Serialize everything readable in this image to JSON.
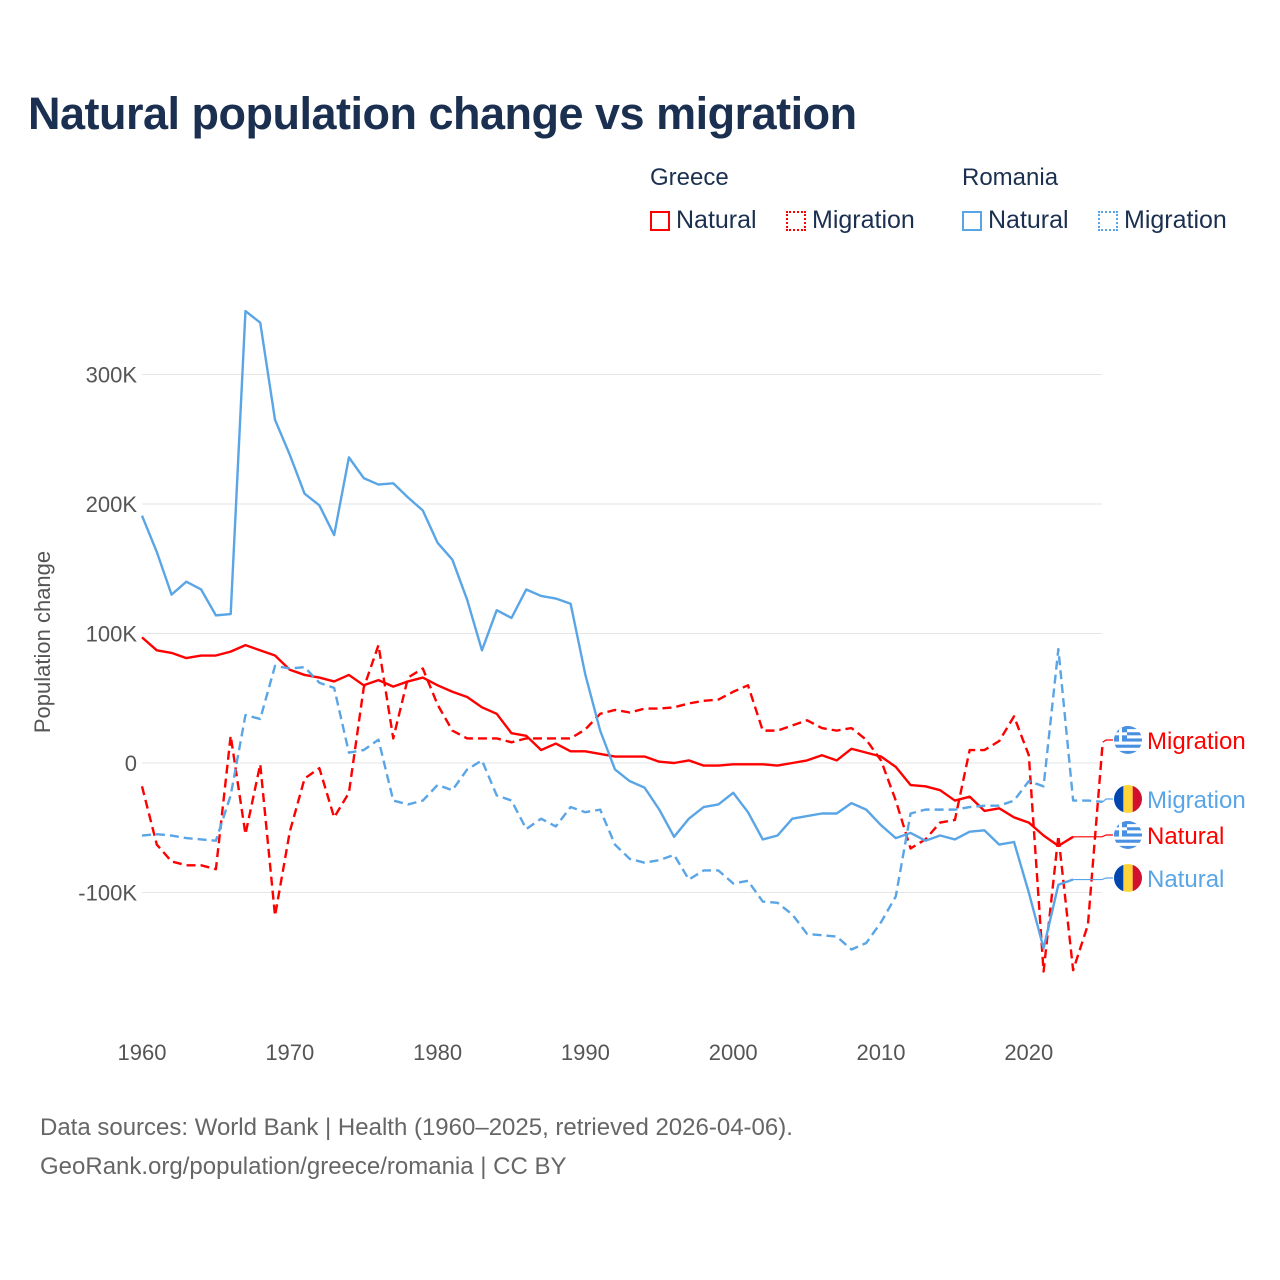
{
  "chart_data": {
    "type": "line",
    "title": "Natural population change vs migration",
    "xlabel": "",
    "ylabel": "Population change",
    "xlim": [
      1960,
      2025
    ],
    "ylim": [
      -175000,
      370000
    ],
    "x_ticks": [
      1960,
      1970,
      1980,
      1990,
      2000,
      2010,
      2020
    ],
    "x_tick_labels": [
      "1960",
      "1970",
      "1980",
      "1990",
      "2000",
      "2010",
      "2020"
    ],
    "y_ticks": [
      -100000,
      0,
      100000,
      200000,
      300000
    ],
    "y_tick_labels": [
      "-100K",
      "0",
      "100K",
      "200K",
      "300K"
    ],
    "grid": true,
    "legend": {
      "placement": "top-right",
      "groups": [
        {
          "name": "Greece",
          "items": [
            "Natural",
            "Migration"
          ]
        },
        {
          "name": "Romania",
          "items": [
            "Natural",
            "Migration"
          ]
        }
      ]
    },
    "series": [
      {
        "name": "Greece Natural",
        "country": "Greece",
        "label": "Natural",
        "style": "solid",
        "color": "#ff0000",
        "start_year": 1960,
        "values": [
          97,
          87,
          85,
          81,
          83,
          83,
          86,
          91,
          87,
          83,
          72,
          68,
          66,
          63,
          68,
          60,
          64,
          59,
          63,
          66,
          60,
          55,
          51,
          43,
          38,
          23,
          21,
          10,
          15,
          9,
          9,
          7,
          5,
          5,
          5,
          1,
          0,
          2,
          -2,
          -2,
          -1,
          -1,
          -1,
          -2,
          0,
          2,
          6,
          2,
          11,
          8,
          5,
          -3,
          -17,
          -18,
          -21,
          -29,
          -26,
          -37,
          -35,
          -42,
          -46,
          -56,
          -64,
          -57
        ]
      },
      {
        "name": "Greece Migration",
        "country": "Greece",
        "label": "Migration",
        "style": "dashed",
        "color": "#ff0000",
        "start_year": 1960,
        "values": [
          -18,
          -63,
          -76,
          -79,
          -79,
          -82,
          21,
          -55,
          -1,
          -118,
          -53,
          -12,
          -4,
          -42,
          -23,
          58,
          91,
          19,
          66,
          73,
          45,
          25,
          19,
          19,
          19,
          16,
          19,
          19,
          19,
          19,
          26,
          38,
          41,
          39,
          42,
          42,
          43,
          46,
          48,
          49,
          55,
          60,
          25,
          25,
          29,
          33,
          27,
          25,
          27,
          18,
          2,
          -29,
          -66,
          -59,
          -46,
          -44,
          10,
          10,
          17,
          36,
          6,
          -161,
          -56,
          -160,
          -125,
          16
        ]
      },
      {
        "name": "Romania Natural",
        "country": "Romania",
        "label": "Natural",
        "style": "solid",
        "color": "#5aa5e6",
        "start_year": 1960,
        "values": [
          191,
          163,
          130,
          140,
          134,
          114,
          115,
          349,
          340,
          265,
          238,
          208,
          199,
          176,
          236,
          220,
          215,
          216,
          205,
          195,
          170,
          157,
          126,
          87,
          118,
          112,
          134,
          129,
          127,
          123,
          68,
          25,
          -5,
          -14,
          -19,
          -36,
          -57,
          -43,
          -34,
          -32,
          -23,
          -38,
          -59,
          -56,
          -43,
          -41,
          -39,
          -39,
          -31,
          -36,
          -48,
          -58,
          -54,
          -60,
          -56,
          -59,
          -53,
          -52,
          -63,
          -61,
          -100,
          -143,
          -94,
          -90
        ]
      },
      {
        "name": "Romania Migration",
        "country": "Romania",
        "label": "Migration",
        "style": "dashed",
        "color": "#5aa5e6",
        "start_year": 1960,
        "values": [
          -56,
          -55,
          -56,
          -58,
          -59,
          -60,
          -25,
          37,
          34,
          75,
          73,
          74,
          62,
          58,
          8,
          10,
          18,
          -29,
          -32,
          -29,
          -17,
          -21,
          -5,
          2,
          -25,
          -29,
          -51,
          -43,
          -49,
          -34,
          -38,
          -36,
          -63,
          -74,
          -77,
          -75,
          -71,
          -90,
          -83,
          -83,
          -93,
          -91,
          -107,
          -108,
          -117,
          -132,
          -133,
          -134,
          -144,
          -139,
          -123,
          -103,
          -39,
          -36,
          -36,
          -36,
          -34,
          -33,
          -33,
          -29,
          -14,
          -18,
          88,
          -29,
          -29,
          -30
        ]
      }
    ],
    "value_unit": "thousands"
  },
  "footer": {
    "line1": "Data sources: World Bank | Health (1960–2025, retrieved 2026-04-06).",
    "line2": "GeoRank.org/population/greece/romania | CC BY"
  }
}
